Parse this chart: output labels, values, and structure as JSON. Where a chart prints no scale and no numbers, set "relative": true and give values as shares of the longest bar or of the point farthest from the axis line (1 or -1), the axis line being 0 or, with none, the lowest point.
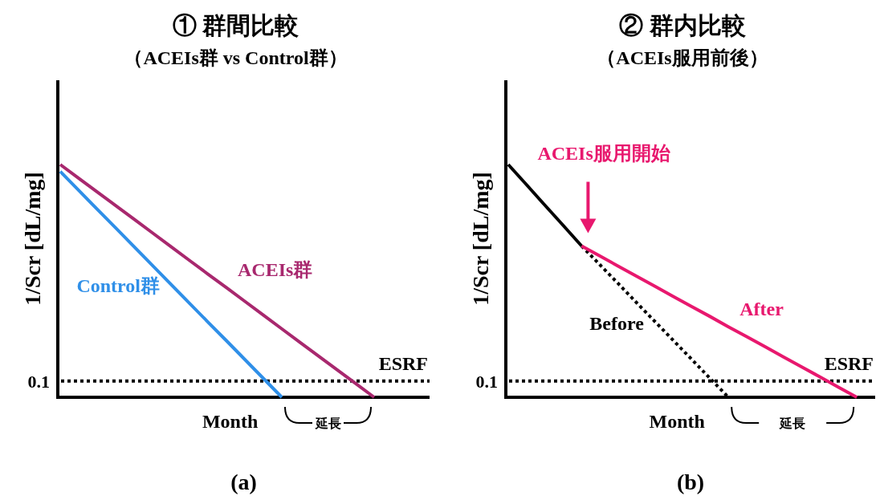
{
  "chart_data": [
    {
      "type": "line",
      "relative": true,
      "title": "① 群間比較",
      "subtitle": "（ACEIs群 vs Control群）",
      "ylabel": "1/Scr [dL/mg]",
      "xlabel": "Month",
      "categories": [
        null,
        null,
        null,
        null,
        null,
        null,
        null,
        null,
        null,
        null,
        null,
        null,
        null,
        null,
        null,
        null,
        null,
        null,
        null,
        null
      ],
      "series": [
        {
          "name": "ACEIs群",
          "color": "#a8286e",
          "values": [
            1,
            0.941,
            0.882,
            0.824,
            0.765,
            0.706,
            0.647,
            0.588,
            0.529,
            0.471,
            0.412,
            0.353,
            0.294,
            0.235,
            0.176,
            0.118,
            0.059,
            0,
            null,
            null
          ]
        },
        {
          "name": "Control群",
          "color": "#2f8fe8",
          "values": [
            0.97,
            0.889,
            0.808,
            0.728,
            0.647,
            0.566,
            0.485,
            0.404,
            0.323,
            0.243,
            0.162,
            0.081,
            0,
            null,
            null,
            null,
            null,
            null,
            null,
            null
          ]
        }
      ],
      "ref_lines": [
        {
          "axis": "y",
          "value": 0.07,
          "label": "0.1",
          "color": "#000000",
          "line_style": "dotted"
        }
      ],
      "annotations": [
        "ESRF",
        "延長",
        "(a)"
      ]
    },
    {
      "type": "line",
      "relative": true,
      "title": "② 群内比較",
      "subtitle": "（ACEIs服用前後）",
      "ylabel": "1/Scr [dL/mg]",
      "xlabel": "Month",
      "categories": [
        null,
        null,
        null,
        null,
        null,
        null,
        null,
        null,
        null,
        null,
        null,
        null,
        null,
        null,
        null,
        null,
        null,
        null,
        null,
        null
      ],
      "series": [
        {
          "color": "#000000",
          "values": [
            1,
            0.913,
            0.825,
            0.738,
            0.65,
            null,
            null,
            null,
            null,
            null,
            null,
            null,
            null,
            null,
            null,
            null,
            null,
            null,
            null,
            null
          ]
        },
        {
          "name": "Before",
          "color": "#000000",
          "line_style": "dotted",
          "values": [
            null,
            null,
            null,
            null,
            0.65,
            0.569,
            0.488,
            0.406,
            0.325,
            0.244,
            0.163,
            0.081,
            0,
            null,
            null,
            null,
            null,
            null,
            null,
            null
          ]
        },
        {
          "name": "After",
          "color": "#e8186e",
          "values": [
            null,
            null,
            null,
            null,
            0.65,
            0.607,
            0.563,
            0.52,
            0.477,
            0.433,
            0.39,
            0.347,
            0.303,
            0.26,
            0.217,
            0.173,
            0.13,
            0.087,
            0.043,
            0
          ]
        }
      ],
      "ref_lines": [
        {
          "axis": "y",
          "value": 0.07,
          "label": "0.1",
          "color": "#000000",
          "line_style": "dotted"
        }
      ],
      "annotations": [
        "ESRF",
        "延長",
        "ACEIs服用開始",
        "(b)"
      ]
    }
  ]
}
